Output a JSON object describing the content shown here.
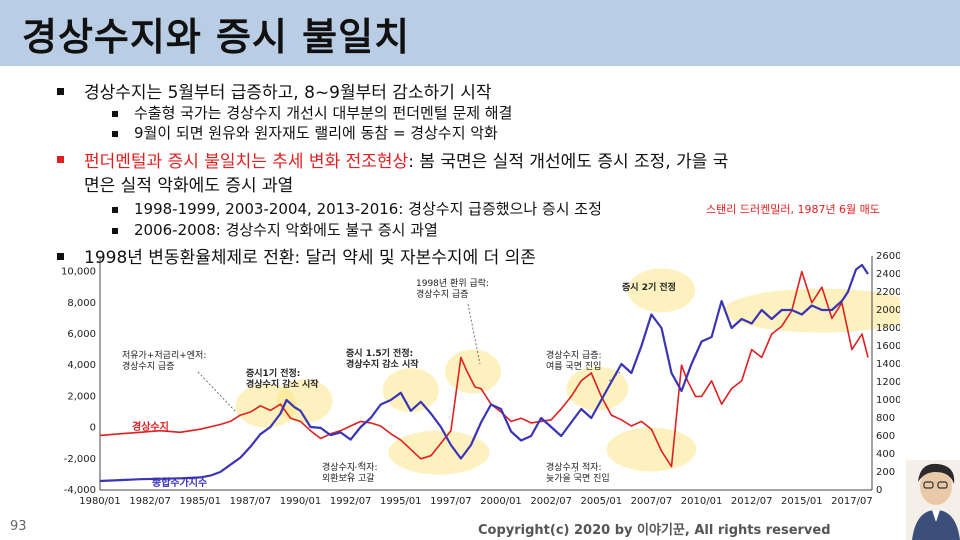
{
  "slide": {
    "title": "경상수지와 증시 불일치",
    "page_number": "93",
    "copyright": "Copyright(c) 2020 by 이야기꾼, All rights reserved"
  },
  "bullets": [
    {
      "level": 1,
      "text": "경상수지는 5월부터 급증하고, 8~9월부터 감소하기 시작"
    },
    {
      "level": 2,
      "text": "수출형 국가는 경상수지 개선시 대부분의 펀더멘털 문제 해결"
    },
    {
      "level": 2,
      "text": "9월이 되면 원유와 원자재도 랠리에 동참 = 경상수지 악화"
    },
    {
      "level": 1,
      "highlight": "펀더멘털과 증시 불일치는 추세 변화 전조현상",
      "text": ": 봄 국면은 실적 개선에도 증시 조정, 가을 국",
      "text_cont": "면은 실적 악화에도 증시 과열"
    },
    {
      "level": 2,
      "text": "1998-1999, 2003-2004, 2013-2016: 경상수지 급증했으나 증시 조정"
    },
    {
      "level": 2,
      "text": "2006-2008: 경상수지 악화에도 불구 증시 과열"
    },
    {
      "level": 1,
      "text": "1998년 변동환율체제로 전환: 달러 약세 및 자본수지에 더 의존"
    }
  ],
  "side_note": "스탠리 드러켄밀러, 1987년 6월 매도",
  "chart_data": {
    "type": "line",
    "title": "",
    "xlabel": "",
    "ylabel": "",
    "x_ticks": [
      "1980/01",
      "1982/07",
      "1985/01",
      "1987/07",
      "1990/01",
      "1992/07",
      "1995/01",
      "1997/07",
      "2000/01",
      "2002/07",
      "2005/01",
      "2007/07",
      "2010/01",
      "2012/07",
      "2015/01",
      "2017/07"
    ],
    "y_left_ticks": [
      "10,000",
      "8,000",
      "6,000",
      "4,000",
      "2,000",
      "0",
      "-2,000",
      "-4,000"
    ],
    "y_left_range": [
      -4000,
      11000
    ],
    "y_right_ticks": [
      "2600",
      "2400",
      "2200",
      "2000",
      "1800",
      "1600",
      "1400",
      "1200",
      "1000",
      "800",
      "600",
      "400",
      "200",
      "0"
    ],
    "y_right_range": [
      0,
      2600
    ],
    "grid": false,
    "series": [
      {
        "name": "경상수지",
        "axis": "left",
        "color": "#e02020",
        "x": [
          1980.0,
          1981.0,
          1982.0,
          1983.0,
          1984.0,
          1985.0,
          1986.0,
          1986.5,
          1987.0,
          1987.5,
          1988.0,
          1988.5,
          1989.0,
          1989.5,
          1990.0,
          1990.5,
          1991.0,
          1991.5,
          1992.0,
          1992.5,
          1993.0,
          1993.5,
          1994.0,
          1994.5,
          1995.0,
          1995.5,
          1996.0,
          1996.5,
          1997.0,
          1997.5,
          1998.0,
          1998.3,
          1998.7,
          1999.0,
          1999.5,
          2000.0,
          2000.5,
          2001.0,
          2001.5,
          2002.0,
          2002.5,
          2003.0,
          2003.5,
          2004.0,
          2004.5,
          2005.0,
          2005.5,
          2006.0,
          2006.5,
          2007.0,
          2007.5,
          2008.0,
          2008.5,
          2009.0,
          2009.3,
          2009.7,
          2010.0,
          2010.5,
          2011.0,
          2011.5,
          2012.0,
          2012.5,
          2013.0,
          2013.5,
          2014.0,
          2014.5,
          2015.0,
          2015.5,
          2016.0,
          2016.5,
          2017.0,
          2017.5,
          2018.0,
          2018.3
        ],
        "values": [
          -500,
          -400,
          -300,
          -200,
          -300,
          -100,
          200,
          400,
          800,
          1000,
          1400,
          1100,
          1500,
          600,
          400,
          -200,
          -700,
          -400,
          -200,
          100,
          400,
          300,
          100,
          -400,
          -800,
          -1400,
          -2000,
          -1800,
          -1000,
          -200,
          4500,
          3600,
          2600,
          2500,
          1500,
          1000,
          400,
          600,
          300,
          400,
          500,
          1200,
          2000,
          3000,
          3500,
          2000,
          800,
          500,
          100,
          400,
          -100,
          -1500,
          -2500,
          4000,
          3000,
          2000,
          2000,
          3000,
          1500,
          2500,
          3000,
          5000,
          4500,
          6000,
          6500,
          7500,
          10000,
          8000,
          9000,
          7000,
          8000,
          5000,
          6000,
          4500
        ]
      },
      {
        "name": "종합주가지수",
        "axis": "right",
        "color": "#3a34b6",
        "x": [
          1980.0,
          1981.0,
          1982.0,
          1983.0,
          1984.0,
          1985.0,
          1985.5,
          1986.0,
          1986.5,
          1987.0,
          1987.5,
          1988.0,
          1988.5,
          1989.0,
          1989.3,
          1989.7,
          1990.0,
          1990.5,
          1991.0,
          1991.5,
          1992.0,
          1992.5,
          1993.0,
          1993.5,
          1994.0,
          1994.5,
          1995.0,
          1995.5,
          1996.0,
          1996.5,
          1997.0,
          1997.5,
          1998.0,
          1998.5,
          1999.0,
          1999.5,
          2000.0,
          2000.5,
          2001.0,
          2001.5,
          2002.0,
          2002.5,
          2003.0,
          2003.5,
          2004.0,
          2004.5,
          2005.0,
          2005.5,
          2006.0,
          2006.5,
          2007.0,
          2007.5,
          2008.0,
          2008.5,
          2009.0,
          2009.5,
          2010.0,
          2010.5,
          2011.0,
          2011.5,
          2012.0,
          2012.5,
          2013.0,
          2013.5,
          2014.0,
          2014.5,
          2015.0,
          2015.5,
          2016.0,
          2016.5,
          2017.0,
          2017.3,
          2017.7,
          2018.0,
          2018.3
        ],
        "values": [
          100,
          110,
          120,
          125,
          130,
          140,
          160,
          200,
          280,
          360,
          480,
          620,
          700,
          850,
          1000,
          920,
          880,
          700,
          690,
          610,
          640,
          560,
          700,
          800,
          950,
          1000,
          1080,
          880,
          980,
          850,
          700,
          500,
          350,
          500,
          750,
          950,
          900,
          650,
          550,
          600,
          800,
          700,
          600,
          750,
          900,
          800,
          1000,
          1200,
          1400,
          1300,
          1600,
          1950,
          1800,
          1300,
          1100,
          1400,
          1650,
          1700,
          2100,
          1800,
          1900,
          1850,
          2000,
          1900,
          2000,
          2000,
          1950,
          2050,
          2000,
          2000,
          2100,
          2200,
          2450,
          2500,
          2400
        ]
      }
    ],
    "annotations": [
      "저유가+저금리+엔저: 경상수지 급증",
      "증시1기 전정: 경상수지 감소 시작",
      "경상수지 적자: 외환보유 고갈",
      "증시 1.5기 전정: 경상수지 감소 시작",
      "1998년 환위 급락: 경상수지 급증",
      "경상수지 급증: 여름 국면 진입",
      "경상수지 적자: 늦가을 국면 진입",
      "증시 2기 전정"
    ],
    "series_labels": {
      "current_account": "경상수지",
      "kospi": "종합주가지수"
    }
  }
}
